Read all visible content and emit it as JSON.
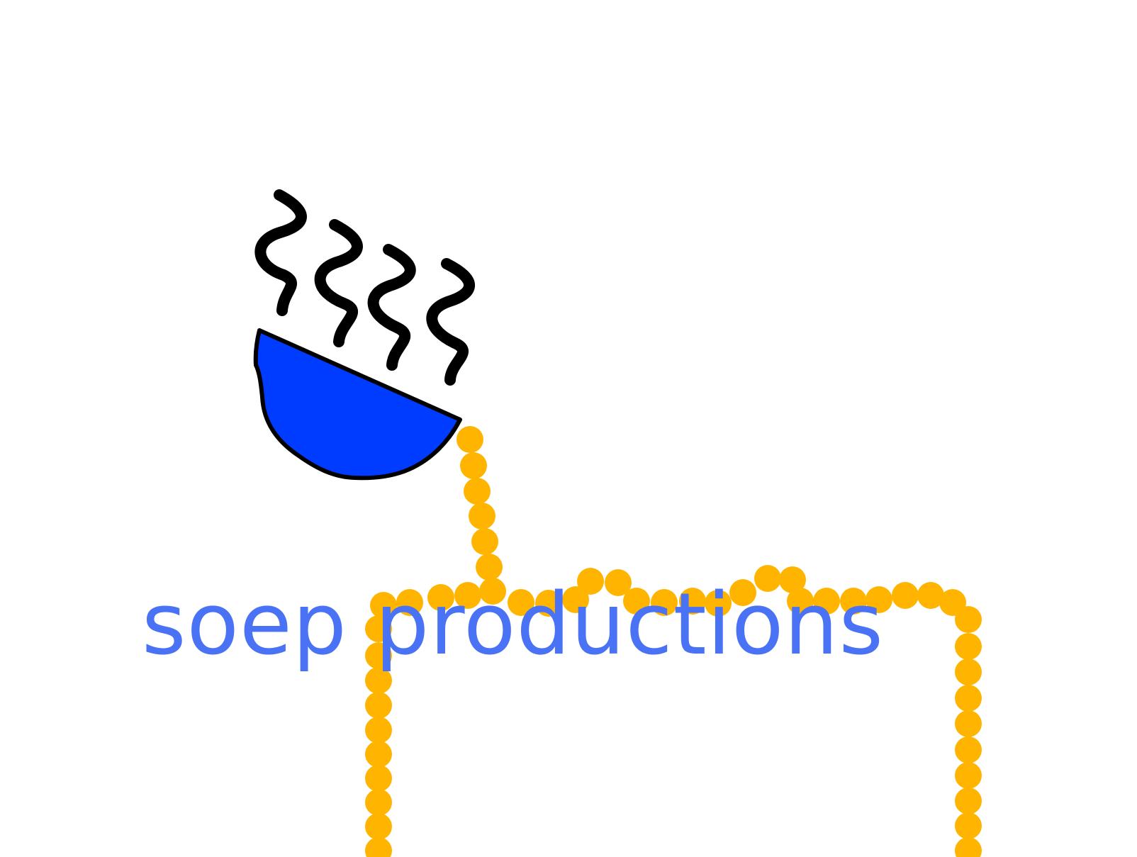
{
  "logo": {
    "wordmark": "soep productions",
    "icon": "steaming-soup-bowl-icon"
  },
  "colors": {
    "background": "#ffffff",
    "wordmark": "#4a72f5",
    "bowl_fill": "#003cff",
    "outline": "#000000",
    "soup_stream": "#ffb400"
  }
}
